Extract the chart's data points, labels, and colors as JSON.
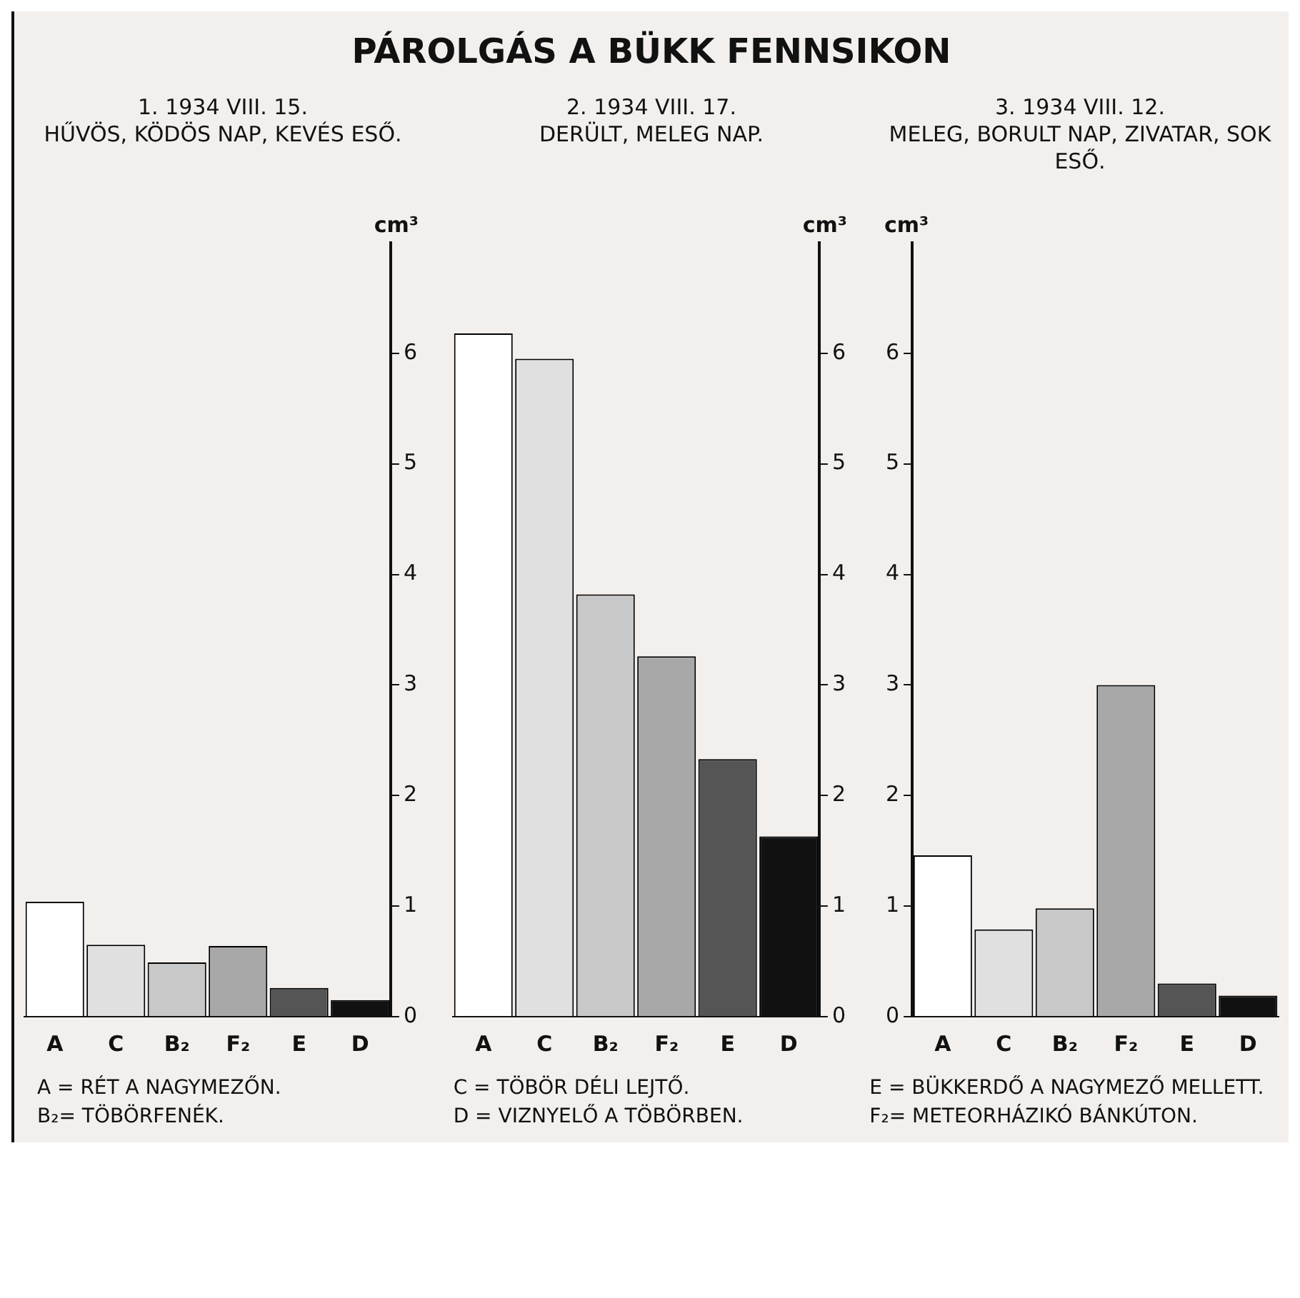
{
  "chart_data": [
    {
      "type": "other",
      "title": "PÁROLGÁS A BÜKK FENNSIKON",
      "annotations": [
        "A = RÉT A NAGYMEZŐN.",
        "B₂= TÖBÖRFENÉK.",
        "C = TÖBÖR DÉLI LEJTŐ.",
        "D = VIZNYELŐ A TÖBÖRBEN.",
        "E = BÜKKERDŐ A NAGYMEZŐ MELLETT.",
        "F₂= METEORHÁZIKÓ BÁNKÚTON."
      ]
    },
    {
      "type": "bar",
      "title": "1. 1934 VIII. 15.",
      "subtitle": "HŰVÖS, KÖDÖS NAP, KEVÉS ESŐ.",
      "ylabel": "cm³",
      "categories": [
        "A",
        "C",
        "B₂",
        "F₂",
        "E",
        "D"
      ],
      "values": [
        1.04,
        0.65,
        0.49,
        0.64,
        0.26,
        0.15
      ],
      "colors": [
        "#ffffff",
        "#e0e0e0",
        "#c8c8c8",
        "#a8a8a8",
        "#555555",
        "#111111"
      ],
      "ylim": [
        0,
        7
      ],
      "yticks": [
        0,
        1,
        2,
        3,
        4,
        5,
        6
      ]
    },
    {
      "type": "bar",
      "title": "2. 1934 VIII. 17.",
      "subtitle": "DERÜLT, MELEG NAP.",
      "ylabel": "cm³",
      "categories": [
        "A",
        "C",
        "B₂",
        "F₂",
        "E",
        "D"
      ],
      "values": [
        6.18,
        5.95,
        3.82,
        3.26,
        2.33,
        1.63
      ],
      "colors": [
        "#ffffff",
        "#e0e0e0",
        "#c8c8c8",
        "#a8a8a8",
        "#555555",
        "#111111"
      ],
      "ylim": [
        0,
        7
      ],
      "yticks": [
        0,
        1,
        2,
        3,
        4,
        5,
        6
      ]
    },
    {
      "type": "bar",
      "title": "3. 1934 VIII. 12.",
      "subtitle": "MELEG, BORULT NAP, ZIVATAR, SOK ESŐ.",
      "ylabel": "cm³",
      "categories": [
        "A",
        "C",
        "B₂",
        "F₂",
        "E",
        "D"
      ],
      "values": [
        1.46,
        0.79,
        0.98,
        3.0,
        0.3,
        0.19
      ],
      "colors": [
        "#ffffff",
        "#e0e0e0",
        "#c8c8c8",
        "#a8a8a8",
        "#555555",
        "#111111"
      ],
      "ylim": [
        0,
        7
      ],
      "yticks": [
        0,
        1,
        2,
        3,
        4,
        5,
        6
      ]
    }
  ]
}
